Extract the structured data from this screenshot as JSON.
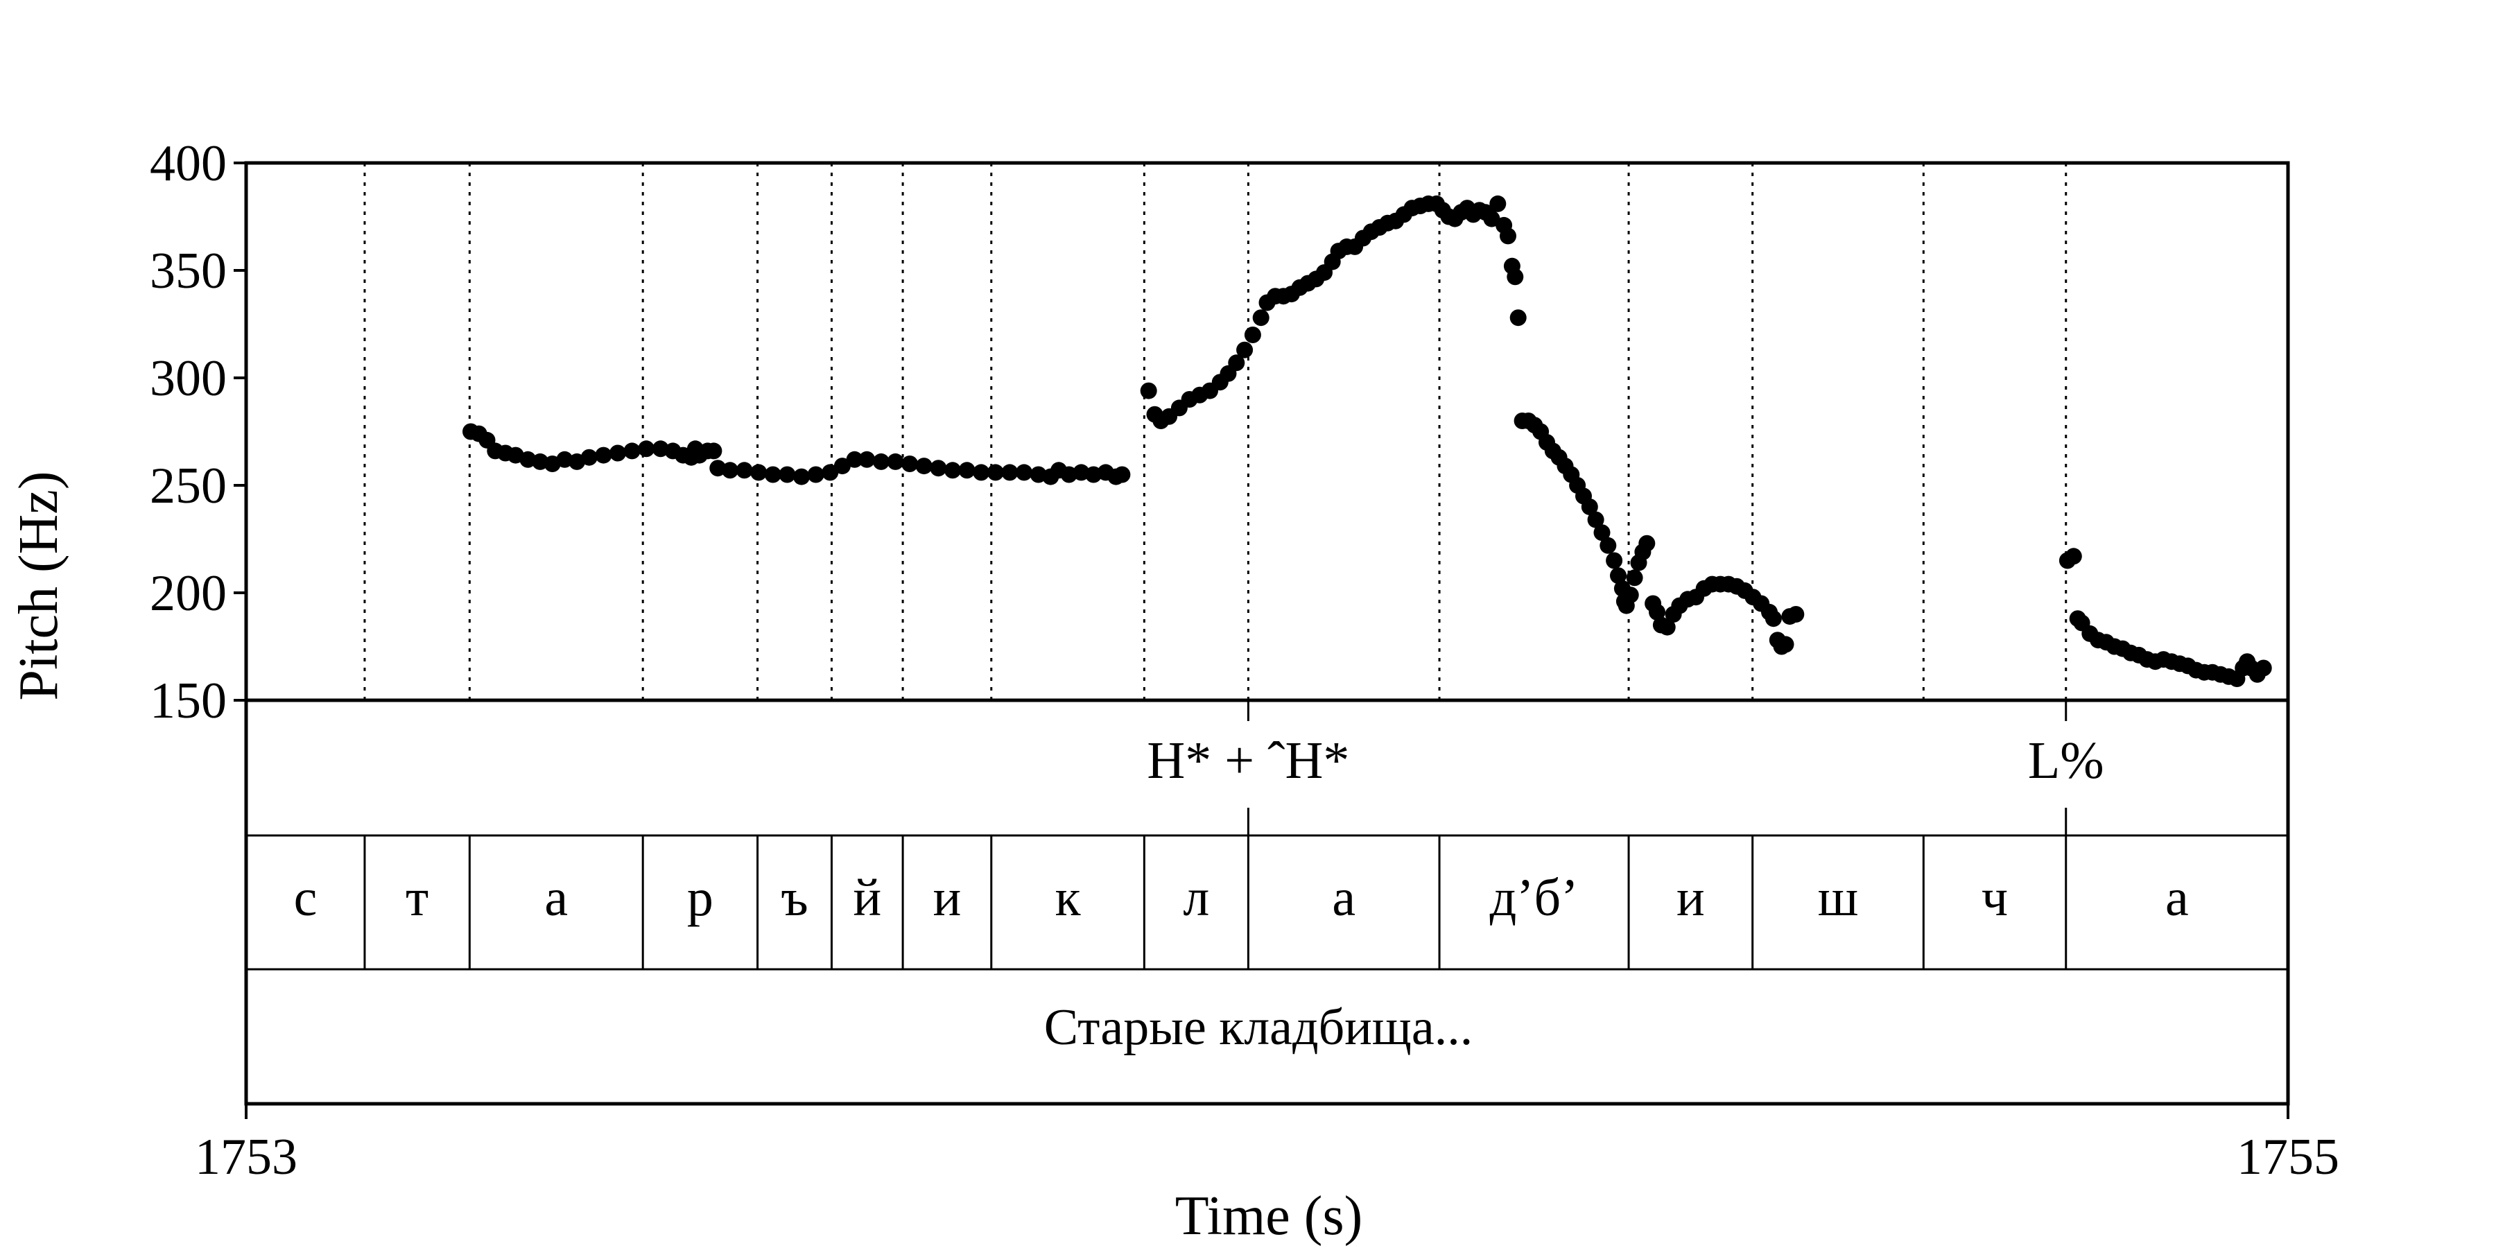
{
  "chart_data": {
    "type": "scatter",
    "xlabel": "Time (s)",
    "ylabel": "Pitch (Hz)",
    "xlim": [
      1753,
      1755
    ],
    "ylim": [
      150,
      400
    ],
    "x_ticks": [
      "1753",
      "1755"
    ],
    "y_ticks": [
      "400",
      "350",
      "300",
      "250",
      "200",
      "150"
    ],
    "marker_color": "#000000",
    "segment_boundaries": [
      1753.1161,
      1753.2189,
      1753.3886,
      1753.5009,
      1753.5735,
      1753.6432,
      1753.7299,
      1753.8797,
      1753.9816,
      1754.1688,
      1754.3542,
      1754.4755,
      1754.643,
      1754.7825
    ],
    "tones": [
      {
        "time": 1753.9816,
        "label": "H* + ˆH*"
      },
      {
        "time": 1754.7825,
        "label": "L%"
      }
    ],
    "segments": [
      {
        "start": 1753.0,
        "end": 1753.1161,
        "label": "с"
      },
      {
        "start": 1753.1161,
        "end": 1753.2189,
        "label": "т"
      },
      {
        "start": 1753.2189,
        "end": 1753.3886,
        "label": "а"
      },
      {
        "start": 1753.3886,
        "end": 1753.5009,
        "label": "р"
      },
      {
        "start": 1753.5009,
        "end": 1753.5735,
        "label": "ъ"
      },
      {
        "start": 1753.5735,
        "end": 1753.6432,
        "label": "й"
      },
      {
        "start": 1753.6432,
        "end": 1753.7299,
        "label": "и"
      },
      {
        "start": 1753.7299,
        "end": 1753.8797,
        "label": "к"
      },
      {
        "start": 1753.8797,
        "end": 1753.9816,
        "label": "л"
      },
      {
        "start": 1753.9816,
        "end": 1754.1688,
        "label": "а"
      },
      {
        "start": 1754.1688,
        "end": 1754.3542,
        "label": "д’б’"
      },
      {
        "start": 1754.3542,
        "end": 1754.4755,
        "label": "и"
      },
      {
        "start": 1754.4755,
        "end": 1754.643,
        "label": "ш"
      },
      {
        "start": 1754.643,
        "end": 1754.7825,
        "label": "ч"
      },
      {
        "start": 1754.7825,
        "end": 1755.0,
        "label": "а"
      }
    ],
    "phrase": "Старые кладбища...",
    "series": [
      {
        "points": [
          [
            1753.22,
            275
          ],
          [
            1753.228,
            274
          ],
          [
            1753.236,
            271
          ],
          [
            1753.244,
            266
          ],
          [
            1753.254,
            265
          ],
          [
            1753.264,
            264
          ],
          [
            1753.276,
            262
          ],
          [
            1753.288,
            261
          ],
          [
            1753.3,
            260
          ],
          [
            1753.312,
            262
          ],
          [
            1753.324,
            261
          ],
          [
            1753.336,
            263
          ],
          [
            1753.35,
            264
          ],
          [
            1753.364,
            265
          ],
          [
            1753.378,
            266
          ],
          [
            1753.392,
            267
          ],
          [
            1753.406,
            267
          ],
          [
            1753.418,
            266
          ],
          [
            1753.428,
            264
          ],
          [
            1753.436,
            263
          ],
          [
            1753.444,
            264
          ],
          [
            1753.452,
            266
          ],
          [
            1753.458,
            266
          ],
          [
            1753.44,
            267
          ],
          [
            1753.462,
            258
          ],
          [
            1753.474,
            257
          ],
          [
            1753.488,
            257
          ],
          [
            1753.502,
            256
          ],
          [
            1753.516,
            255
          ],
          [
            1753.53,
            255
          ],
          [
            1753.544,
            254
          ],
          [
            1753.558,
            255
          ],
          [
            1753.572,
            256
          ],
          [
            1753.584,
            259
          ],
          [
            1753.596,
            262
          ],
          [
            1753.608,
            262
          ],
          [
            1753.622,
            261
          ],
          [
            1753.636,
            261
          ],
          [
            1753.65,
            260
          ],
          [
            1753.664,
            259
          ],
          [
            1753.678,
            258
          ],
          [
            1753.692,
            257
          ],
          [
            1753.706,
            257
          ],
          [
            1753.72,
            256
          ],
          [
            1753.734,
            256
          ],
          [
            1753.748,
            256
          ],
          [
            1753.762,
            256
          ],
          [
            1753.776,
            255
          ],
          [
            1753.788,
            254
          ],
          [
            1753.796,
            257
          ],
          [
            1753.806,
            255
          ],
          [
            1753.818,
            256
          ],
          [
            1753.83,
            255
          ],
          [
            1753.842,
            256
          ],
          [
            1753.852,
            254
          ],
          [
            1753.858,
            255
          ],
          [
            1753.884,
            294
          ],
          [
            1753.89,
            283
          ],
          [
            1753.896,
            280
          ],
          [
            1753.904,
            282
          ],
          [
            1753.914,
            286
          ],
          [
            1753.924,
            290
          ],
          [
            1753.934,
            292
          ],
          [
            1753.944,
            294
          ],
          [
            1753.954,
            298
          ],
          [
            1753.962,
            302
          ],
          [
            1753.97,
            307
          ],
          [
            1753.978,
            313
          ],
          [
            1753.986,
            320
          ],
          [
            1753.994,
            328
          ],
          [
            1754.0,
            335
          ],
          [
            1754.008,
            338
          ],
          [
            1754.016,
            338
          ],
          [
            1754.024,
            339
          ],
          [
            1754.032,
            342
          ],
          [
            1754.04,
            344
          ],
          [
            1754.048,
            346
          ],
          [
            1754.056,
            349
          ],
          [
            1754.064,
            354
          ],
          [
            1754.07,
            359
          ],
          [
            1754.078,
            361
          ],
          [
            1754.086,
            361
          ],
          [
            1754.094,
            365
          ],
          [
            1754.102,
            368
          ],
          [
            1754.11,
            370
          ],
          [
            1754.118,
            372
          ],
          [
            1754.126,
            373
          ],
          [
            1754.134,
            376
          ],
          [
            1754.142,
            379
          ],
          [
            1754.15,
            380
          ],
          [
            1754.158,
            381
          ],
          [
            1754.166,
            381
          ],
          [
            1754.172,
            378
          ],
          [
            1754.178,
            375
          ],
          [
            1754.184,
            374
          ],
          [
            1754.19,
            377
          ],
          [
            1754.196,
            379
          ],
          [
            1754.202,
            376
          ],
          [
            1754.208,
            378
          ],
          [
            1754.214,
            377
          ],
          [
            1754.22,
            374
          ],
          [
            1754.226,
            381
          ],
          [
            1754.232,
            371
          ],
          [
            1754.236,
            366
          ],
          [
            1754.24,
            352
          ],
          [
            1754.243,
            347
          ],
          [
            1754.246,
            328
          ],
          [
            1754.25,
            280
          ],
          [
            1754.256,
            280
          ],
          [
            1754.262,
            278
          ],
          [
            1754.268,
            275
          ],
          [
            1754.274,
            270
          ],
          [
            1754.28,
            266
          ],
          [
            1754.286,
            263
          ],
          [
            1754.292,
            259
          ],
          [
            1754.298,
            255
          ],
          [
            1754.304,
            250
          ],
          [
            1754.31,
            245
          ],
          [
            1754.316,
            240
          ],
          [
            1754.322,
            234
          ],
          [
            1754.328,
            228
          ],
          [
            1754.334,
            222
          ],
          [
            1754.34,
            215
          ],
          [
            1754.344,
            208
          ],
          [
            1754.348,
            202
          ],
          [
            1754.35,
            196
          ],
          [
            1754.352,
            194
          ],
          [
            1754.356,
            199
          ],
          [
            1754.36,
            207
          ],
          [
            1754.364,
            214
          ],
          [
            1754.368,
            219
          ],
          [
            1754.372,
            223
          ],
          [
            1754.378,
            195
          ],
          [
            1754.382,
            191
          ],
          [
            1754.386,
            185
          ],
          [
            1754.392,
            184
          ],
          [
            1754.398,
            190
          ],
          [
            1754.404,
            194
          ],
          [
            1754.412,
            197
          ],
          [
            1754.42,
            198
          ],
          [
            1754.428,
            202
          ],
          [
            1754.436,
            204
          ],
          [
            1754.444,
            204
          ],
          [
            1754.452,
            204
          ],
          [
            1754.46,
            203
          ],
          [
            1754.468,
            201
          ],
          [
            1754.476,
            198
          ],
          [
            1754.484,
            195
          ],
          [
            1754.492,
            191
          ],
          [
            1754.496,
            188
          ],
          [
            1754.5,
            178
          ],
          [
            1754.504,
            175
          ],
          [
            1754.508,
            176
          ],
          [
            1754.512,
            189
          ],
          [
            1754.518,
            190
          ],
          [
            1754.784,
            215
          ],
          [
            1754.79,
            217
          ],
          [
            1754.794,
            188
          ],
          [
            1754.798,
            186
          ],
          [
            1754.806,
            181
          ],
          [
            1754.814,
            178
          ],
          [
            1754.822,
            177
          ],
          [
            1754.83,
            175
          ],
          [
            1754.838,
            174
          ],
          [
            1754.846,
            172
          ],
          [
            1754.854,
            171
          ],
          [
            1754.862,
            169
          ],
          [
            1754.87,
            168
          ],
          [
            1754.878,
            169
          ],
          [
            1754.886,
            168
          ],
          [
            1754.894,
            167
          ],
          [
            1754.902,
            166
          ],
          [
            1754.91,
            164
          ],
          [
            1754.918,
            163
          ],
          [
            1754.926,
            163
          ],
          [
            1754.934,
            162
          ],
          [
            1754.942,
            161
          ],
          [
            1754.95,
            160
          ],
          [
            1754.956,
            165
          ],
          [
            1754.96,
            168
          ],
          [
            1754.964,
            165
          ],
          [
            1754.97,
            162
          ],
          [
            1754.976,
            165
          ]
        ]
      }
    ]
  }
}
